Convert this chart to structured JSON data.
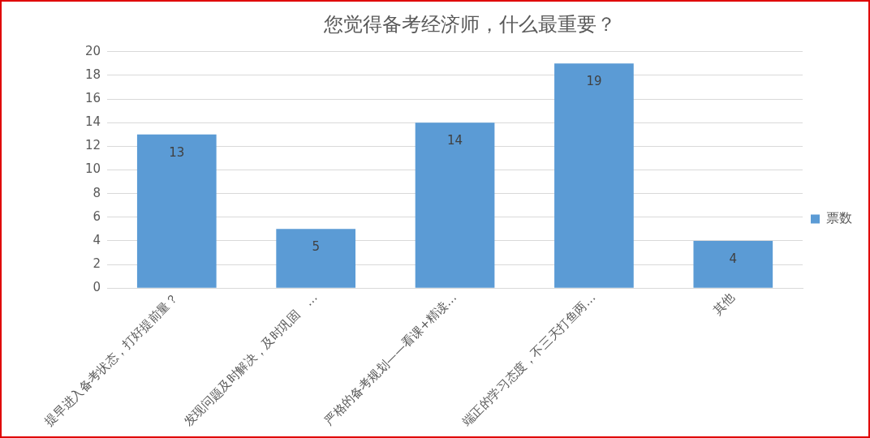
{
  "chart_data": {
    "type": "bar",
    "title": "您觉得备考经济师，什么最重要？",
    "categories": [
      "提早进入备考状态，打好提前量？",
      "发现问题及时解决，及时巩固　…",
      "严格的备考规划——看课+精读…",
      "端正的学习态度，不三天打鱼两…",
      "其他"
    ],
    "series": [
      {
        "name": "票数",
        "color": "#5b9bd5",
        "values": [
          13,
          5,
          14,
          19,
          4
        ]
      }
    ],
    "ylim": [
      0,
      20
    ],
    "yticks": [
      0,
      2,
      4,
      6,
      8,
      10,
      12,
      14,
      16,
      18,
      20
    ],
    "grid": "y",
    "legend": "right",
    "data_labels": true
  }
}
